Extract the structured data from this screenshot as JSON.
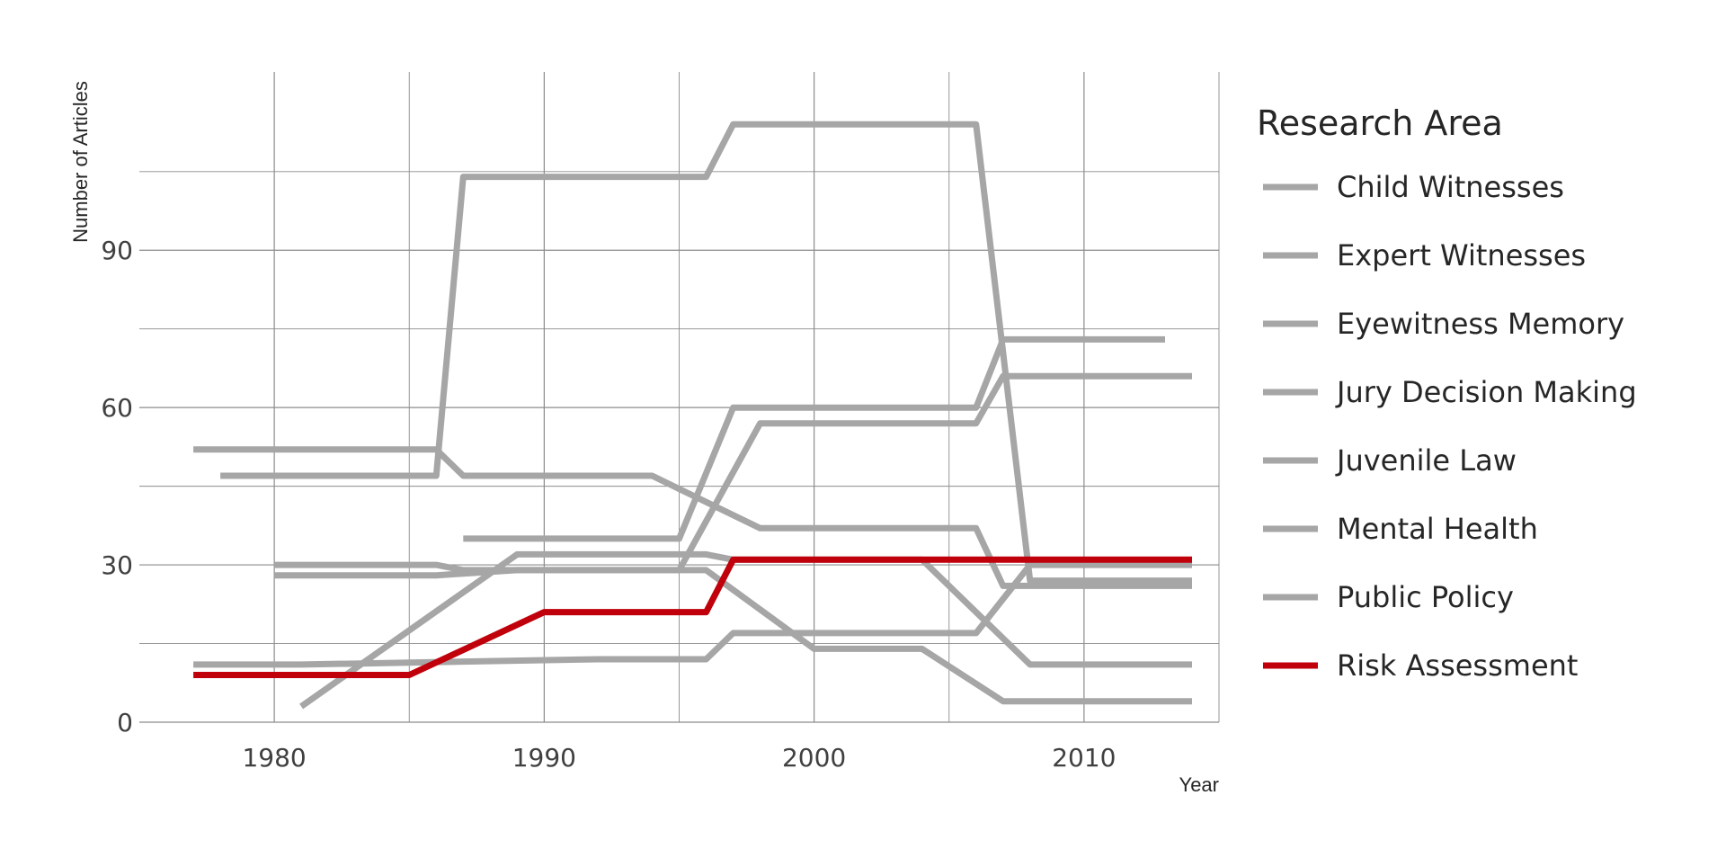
{
  "chart_data": {
    "type": "line",
    "title": "",
    "xlabel": "Year",
    "ylabel": "Number of Articles",
    "xlim": [
      1975,
      2015
    ],
    "ylim": [
      0,
      124
    ],
    "x_ticks": [
      1980,
      1990,
      2000,
      2010
    ],
    "x_tick_labels": [
      "1980",
      "1990",
      "2000",
      "2010"
    ],
    "x_minor_ticks": [
      1985,
      1995,
      2005,
      2015
    ],
    "y_ticks": [
      0,
      30,
      60,
      90
    ],
    "y_tick_labels": [
      "0",
      "30",
      "60",
      "90"
    ],
    "y_minor_ticks": [
      15,
      45,
      75,
      105
    ],
    "grid": true,
    "legend": {
      "title": "Research Area",
      "position": "right"
    },
    "highlight_color": "#c0000b",
    "muted_color": "#a6a6a6",
    "series": [
      {
        "name": "Child Witnesses",
        "color": "#a6a6a6",
        "points": [
          [
            1977,
            52
          ],
          [
            1986,
            52
          ],
          [
            1987,
            47
          ],
          [
            1994,
            47
          ],
          [
            1998,
            37
          ],
          [
            2006,
            37
          ],
          [
            2007,
            26
          ],
          [
            2014,
            26
          ]
        ]
      },
      {
        "name": "Expert Witnesses",
        "color": "#a6a6a6",
        "points": [
          [
            1978,
            47
          ],
          [
            1986,
            47
          ],
          [
            1987,
            104
          ],
          [
            1996,
            104
          ],
          [
            1997,
            114
          ],
          [
            2006,
            114
          ],
          [
            2008,
            27
          ],
          [
            2014,
            27
          ]
        ]
      },
      {
        "name": "Eyewitness Memory",
        "color": "#a6a6a6",
        "points": [
          [
            1987,
            35
          ],
          [
            1995,
            35
          ],
          [
            1997,
            60
          ],
          [
            2006,
            60
          ],
          [
            2007,
            73
          ],
          [
            2013,
            73
          ]
        ]
      },
      {
        "name": "Jury Decision Making",
        "color": "#a6a6a6",
        "points": [
          [
            1980,
            30
          ],
          [
            1986,
            30
          ],
          [
            1987,
            29
          ],
          [
            1996,
            29
          ],
          [
            2000,
            14
          ],
          [
            2004,
            14
          ],
          [
            2007,
            4
          ],
          [
            2014,
            4
          ]
        ]
      },
      {
        "name": "Juvenile Law",
        "color": "#a6a6a6",
        "points": [
          [
            1980,
            28
          ],
          [
            1986,
            28
          ],
          [
            1989,
            29
          ],
          [
            1995,
            29
          ],
          [
            1998,
            57
          ],
          [
            2006,
            57
          ],
          [
            2007,
            66
          ],
          [
            2014,
            66
          ]
        ]
      },
      {
        "name": "Mental Health",
        "color": "#a6a6a6",
        "points": [
          [
            1981,
            3
          ],
          [
            1989,
            32
          ],
          [
            1996,
            32
          ],
          [
            1997,
            31
          ],
          [
            2004,
            31
          ],
          [
            2008,
            11
          ],
          [
            2014,
            11
          ]
        ]
      },
      {
        "name": "Public Policy",
        "color": "#a6a6a6",
        "points": [
          [
            1977,
            11
          ],
          [
            1981,
            11
          ],
          [
            1992,
            12
          ],
          [
            1996,
            12
          ],
          [
            1997,
            17
          ],
          [
            2006,
            17
          ],
          [
            2008,
            30
          ],
          [
            2014,
            30
          ]
        ]
      },
      {
        "name": "Risk Assessment",
        "color": "#c0000b",
        "points": [
          [
            1977,
            9
          ],
          [
            1985,
            9
          ],
          [
            1990,
            21
          ],
          [
            1996,
            21
          ],
          [
            1997,
            31
          ],
          [
            2014,
            31
          ]
        ]
      }
    ]
  }
}
